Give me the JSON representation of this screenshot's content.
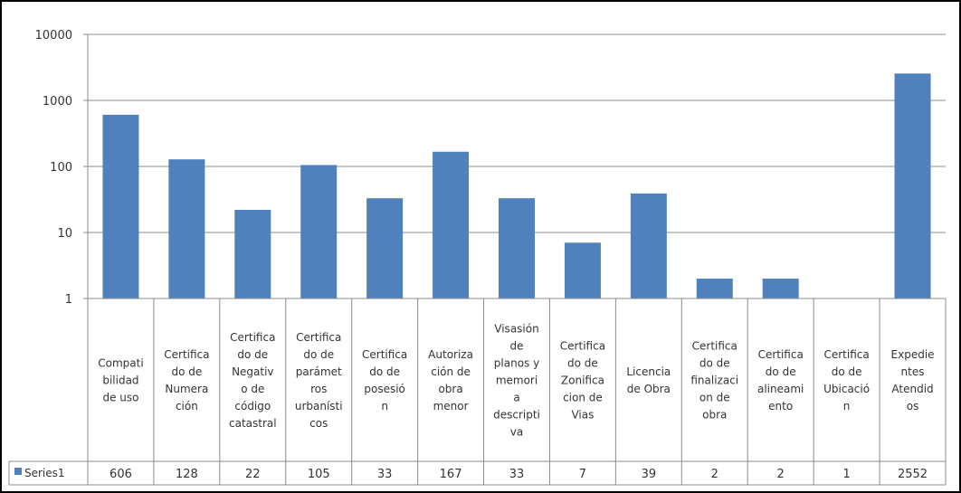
{
  "chart_data": {
    "type": "bar",
    "y_scale": "log",
    "ylim": [
      1,
      10000
    ],
    "y_ticks": [
      "1",
      "10",
      "100",
      "1000",
      "10000"
    ],
    "grid": true,
    "legend_placement": "data-table-left",
    "categories": [
      [
        "Compati",
        "bilidad",
        "de uso"
      ],
      [
        "Certifica",
        "do de",
        "Numera",
        "ción"
      ],
      [
        "Certifica",
        "do de",
        "Negativ",
        "o de",
        "código",
        "catastral"
      ],
      [
        "Certifica",
        "do de",
        "parámet",
        "ros",
        "urbanísti",
        "cos"
      ],
      [
        "Certifica",
        "do de",
        "posesió",
        "n"
      ],
      [
        "Autoriza",
        "ción de",
        "obra",
        "menor"
      ],
      [
        "Visasión",
        "de",
        "planos y",
        "memori",
        "a",
        "descripti",
        "va"
      ],
      [
        "Certifica",
        "do de",
        "Zonifica",
        "cion de",
        "Vias"
      ],
      [
        "Licencia",
        "de Obra"
      ],
      [
        "Certifica",
        "do de",
        "finalizaci",
        "on de",
        "obra"
      ],
      [
        "Certifica",
        "do de",
        "alineami",
        "ento"
      ],
      [
        "Certifica",
        "do de",
        "Ubicació",
        "n"
      ],
      [
        "Expedie",
        "ntes",
        "Atendid",
        "os"
      ]
    ],
    "series": [
      {
        "name": "Series1",
        "color": "#4f81bd",
        "values": [
          606,
          128,
          22,
          105,
          33,
          167,
          33,
          7,
          39,
          2,
          2,
          1,
          2552
        ],
        "value_labels": [
          "606",
          "128",
          "22",
          "105",
          "33",
          "167",
          "33",
          "7",
          "39",
          "2",
          "2",
          "1",
          "2552"
        ]
      }
    ]
  }
}
